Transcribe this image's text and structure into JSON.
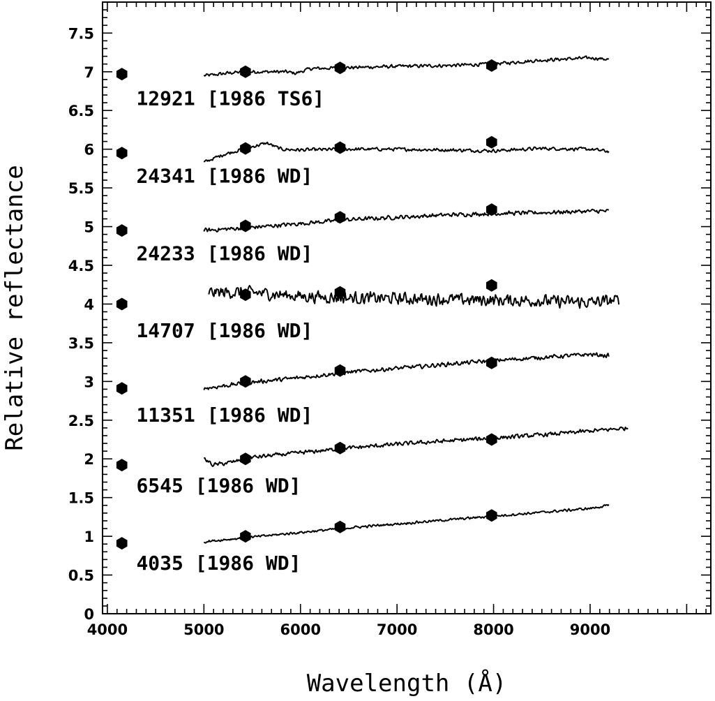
{
  "chart_data": {
    "type": "line",
    "xlabel": "Wavelength (Å)",
    "ylabel": "Relative reflectance",
    "xlim": [
      3950,
      10250
    ],
    "ylim": [
      0,
      7.9
    ],
    "x_ticks": [
      4000,
      5000,
      6000,
      7000,
      8000,
      9000
    ],
    "y_ticks": [
      0,
      0.5,
      1,
      1.5,
      2,
      2.5,
      3,
      3.5,
      4,
      4.5,
      5,
      5.5,
      6,
      6.5,
      7,
      7.5
    ],
    "x_tick_labels": [
      "4000",
      "5000",
      "6000",
      "7000",
      "8000",
      "9000"
    ],
    "y_tick_labels": [
      "0",
      "0.5",
      "1",
      "1.5",
      "2",
      "2.5",
      "3",
      "3.5",
      "4",
      "4.5",
      "5",
      "5.5",
      "6",
      "6.5",
      "7",
      "7.5"
    ],
    "grid": false,
    "series": [
      {
        "name": "12921 [1986 TS6]",
        "label_at": [
          4300,
          6.66
        ],
        "noise": 0.025,
        "spectrum": [
          [
            5000,
            6.95
          ],
          [
            5100,
            6.96
          ],
          [
            5300,
            6.99
          ],
          [
            5500,
            7.0
          ],
          [
            5700,
            7.0
          ],
          [
            5850,
            7.0
          ],
          [
            5950,
            6.98
          ],
          [
            6100,
            7.04
          ],
          [
            6400,
            7.05
          ],
          [
            6700,
            7.06
          ],
          [
            7000,
            7.07
          ],
          [
            7500,
            7.08
          ],
          [
            8000,
            7.1
          ],
          [
            8500,
            7.15
          ],
          [
            9000,
            7.18
          ],
          [
            9200,
            7.16
          ]
        ],
        "photometry": [
          [
            4150,
            6.97
          ],
          [
            5430,
            7.0
          ],
          [
            6410,
            7.05
          ],
          [
            7980,
            7.08
          ]
        ]
      },
      {
        "name": "24341 [1986 WD]",
        "label_at": [
          4300,
          5.66
        ],
        "noise": 0.025,
        "spectrum": [
          [
            5000,
            5.83
          ],
          [
            5200,
            5.93
          ],
          [
            5400,
            6.0
          ],
          [
            5650,
            6.08
          ],
          [
            5800,
            6.0
          ],
          [
            6000,
            5.99
          ],
          [
            6500,
            6.0
          ],
          [
            7000,
            6.0
          ],
          [
            7500,
            5.99
          ],
          [
            8000,
            5.98
          ],
          [
            8500,
            6.01
          ],
          [
            9000,
            6.0
          ],
          [
            9200,
            5.97
          ]
        ],
        "photometry": [
          [
            4150,
            5.95
          ],
          [
            5430,
            6.01
          ],
          [
            6410,
            6.02
          ],
          [
            7980,
            6.09
          ]
        ]
      },
      {
        "name": "24233 [1986 WD]",
        "label_at": [
          4300,
          4.66
        ],
        "noise": 0.03,
        "spectrum": [
          [
            5000,
            4.95
          ],
          [
            5500,
            4.99
          ],
          [
            6000,
            5.04
          ],
          [
            6500,
            5.09
          ],
          [
            7000,
            5.12
          ],
          [
            7500,
            5.15
          ],
          [
            8000,
            5.17
          ],
          [
            8500,
            5.18
          ],
          [
            9000,
            5.2
          ],
          [
            9200,
            5.2
          ]
        ],
        "photometry": [
          [
            4150,
            4.95
          ],
          [
            5430,
            5.01
          ],
          [
            6410,
            5.12
          ],
          [
            7980,
            5.22
          ]
        ]
      },
      {
        "name": "14707 [1986 WD]",
        "label_at": [
          4300,
          3.66
        ],
        "noise": 0.09,
        "spectrum": [
          [
            5050,
            4.15
          ],
          [
            5500,
            4.15
          ],
          [
            6000,
            4.1
          ],
          [
            6500,
            4.08
          ],
          [
            7000,
            4.07
          ],
          [
            7500,
            4.06
          ],
          [
            8000,
            4.05
          ],
          [
            8500,
            4.04
          ],
          [
            9000,
            4.02
          ],
          [
            9300,
            4.05
          ]
        ],
        "photometry": [
          [
            4150,
            4.0
          ],
          [
            5430,
            4.12
          ],
          [
            6410,
            4.15
          ],
          [
            7980,
            4.24
          ]
        ]
      },
      {
        "name": "11351 [1986 WD]",
        "label_at": [
          4300,
          2.57
        ],
        "noise": 0.03,
        "spectrum": [
          [
            5000,
            2.91
          ],
          [
            5500,
            2.99
          ],
          [
            6000,
            3.05
          ],
          [
            6500,
            3.12
          ],
          [
            7000,
            3.17
          ],
          [
            7500,
            3.22
          ],
          [
            8000,
            3.27
          ],
          [
            8500,
            3.31
          ],
          [
            9000,
            3.35
          ],
          [
            9200,
            3.33
          ]
        ],
        "photometry": [
          [
            4150,
            2.91
          ],
          [
            5430,
            3.0
          ],
          [
            6410,
            3.14
          ],
          [
            7980,
            3.24
          ]
        ]
      },
      {
        "name": "6545 [1986 WD]",
        "label_at": [
          4300,
          1.66
        ],
        "noise": 0.03,
        "spectrum": [
          [
            5000,
            2.0
          ],
          [
            5100,
            1.92
          ],
          [
            5300,
            1.96
          ],
          [
            5500,
            2.02
          ],
          [
            6000,
            2.08
          ],
          [
            6500,
            2.14
          ],
          [
            7000,
            2.19
          ],
          [
            7500,
            2.23
          ],
          [
            8000,
            2.27
          ],
          [
            8500,
            2.31
          ],
          [
            9000,
            2.36
          ],
          [
            9400,
            2.4
          ]
        ],
        "photometry": [
          [
            4150,
            1.92
          ],
          [
            5430,
            2.0
          ],
          [
            6410,
            2.14
          ],
          [
            7980,
            2.25
          ]
        ]
      },
      {
        "name": "4035 [1986 WD]",
        "label_at": [
          4300,
          0.66
        ],
        "noise": 0.018,
        "spectrum": [
          [
            5000,
            0.93
          ],
          [
            5500,
            0.99
          ],
          [
            6000,
            1.05
          ],
          [
            6500,
            1.11
          ],
          [
            7000,
            1.16
          ],
          [
            7500,
            1.21
          ],
          [
            8000,
            1.26
          ],
          [
            8500,
            1.31
          ],
          [
            9000,
            1.36
          ],
          [
            9200,
            1.4
          ]
        ],
        "photometry": [
          [
            4150,
            0.91
          ],
          [
            5430,
            1.0
          ],
          [
            6410,
            1.12
          ],
          [
            7980,
            1.27
          ]
        ]
      }
    ]
  }
}
